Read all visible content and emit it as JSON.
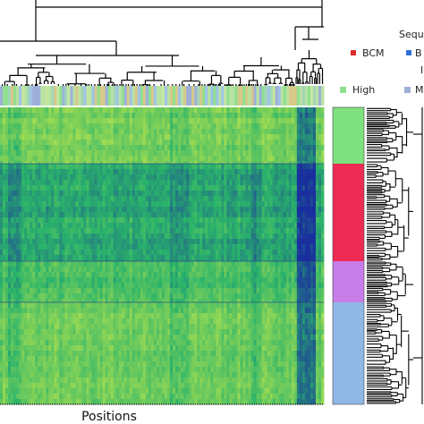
{
  "chart_data": {
    "type": "heatmap",
    "title": "",
    "xlabel": "Positions",
    "ylabel": "",
    "grid": false,
    "legend_position": "top-right (partially cropped)",
    "color_scale": {
      "low": "#1a2f9e",
      "mid": "#2ab36b",
      "high": "#c7e94a"
    },
    "row_clusters": [
      {
        "group": "High",
        "color": "#7fe07f"
      },
      {
        "group": "BCM",
        "color": "#ee2b55"
      },
      {
        "group": "M",
        "color": "#c77de8"
      },
      {
        "group": "M",
        "color": "#8fb8e6"
      }
    ],
    "legend": {
      "sequencing_title": "Sequ",
      "sequencing_entries": [
        {
          "label": "BCM",
          "color": "#dc2a2a"
        },
        {
          "label": "B",
          "color": "#2f6fd6"
        }
      ],
      "group_title": "I",
      "group_entries": [
        {
          "label": "High",
          "color": "#8fe08f"
        },
        {
          "label": "M",
          "color": "#9fb0d8"
        }
      ]
    }
  }
}
